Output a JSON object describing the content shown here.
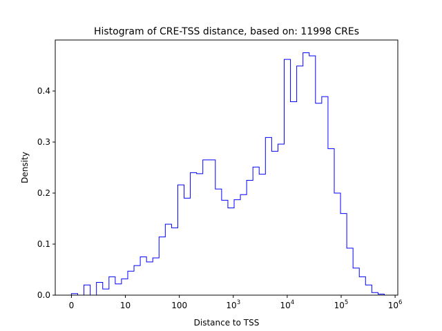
{
  "chart_data": {
    "type": "histogram-step",
    "title": "Histogram of CRE-TSS distance, based on: 11998 CREs",
    "xlabel": "Distance to TSS",
    "ylabel": "Density",
    "xscale": "symlog",
    "xlim": [
      -0.3,
      6.05
    ],
    "ylim": [
      0,
      0.5
    ],
    "line_color": "#0000ff",
    "x_ticks": [
      {
        "value": 0,
        "label": "0",
        "exp": ""
      },
      {
        "value": 1,
        "label": "10",
        "exp": ""
      },
      {
        "value": 2,
        "label": "100",
        "exp": ""
      },
      {
        "value": 3,
        "label": "10",
        "exp": "3"
      },
      {
        "value": 4,
        "label": "10",
        "exp": "4"
      },
      {
        "value": 5,
        "label": "10",
        "exp": "5"
      },
      {
        "value": 6,
        "label": "10",
        "exp": "6"
      }
    ],
    "y_ticks": [
      {
        "value": 0.0,
        "label": "0.0"
      },
      {
        "value": 0.1,
        "label": "0.1"
      },
      {
        "value": 0.2,
        "label": "0.2"
      },
      {
        "value": 0.3,
        "label": "0.3"
      },
      {
        "value": 0.4,
        "label": "0.4"
      }
    ],
    "bins_start": 0.0,
    "bins_end": 5.8,
    "densities": [
      0.003,
      0.0,
      0.02,
      0.0,
      0.025,
      0.012,
      0.036,
      0.022,
      0.032,
      0.047,
      0.058,
      0.075,
      0.065,
      0.073,
      0.114,
      0.139,
      0.132,
      0.216,
      0.19,
      0.24,
      0.238,
      0.265,
      0.265,
      0.208,
      0.186,
      0.171,
      0.187,
      0.197,
      0.225,
      0.251,
      0.237,
      0.309,
      0.282,
      0.296,
      0.462,
      0.379,
      0.449,
      0.475,
      0.469,
      0.376,
      0.389,
      0.287,
      0.2,
      0.16,
      0.092,
      0.053,
      0.036,
      0.02,
      0.005,
      0.002
    ]
  }
}
